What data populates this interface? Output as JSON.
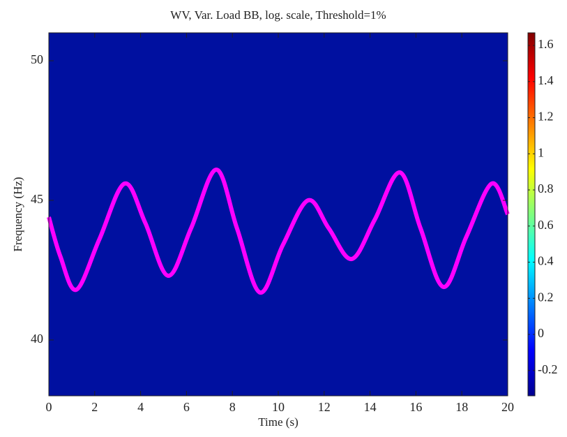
{
  "chart_data": {
    "type": "spectrogram",
    "title": "WV, Var. Load BB, log. scale, Threshold=1%",
    "xlabel": "Time (s)",
    "ylabel": "Frequency (Hz)",
    "xlim": [
      0,
      20
    ],
    "xticks": [
      0,
      2,
      4,
      6,
      8,
      10,
      12,
      14,
      16,
      18,
      20
    ],
    "ylim": [
      38,
      51
    ],
    "yticks": [
      40,
      45,
      50
    ],
    "series": [
      {
        "color": "#ff00ff",
        "x": [
          0,
          0.5,
          1.2,
          2.2,
          3.3,
          4.2,
          5.2,
          6.2,
          7.3,
          8.2,
          9.2,
          10.2,
          11.3,
          12.2,
          13.2,
          14.2,
          15.3,
          16.2,
          17.2,
          18.2,
          19.3,
          20
        ],
        "values": [
          44.4,
          43.0,
          41.8,
          43.6,
          45.6,
          44.2,
          42.3,
          44.0,
          46.1,
          44.0,
          41.7,
          43.4,
          45.0,
          44.0,
          42.9,
          44.3,
          46.0,
          44.0,
          41.9,
          43.7,
          45.6,
          44.5
        ]
      }
    ],
    "colorbar": {
      "clim": [
        -0.34,
        1.67
      ],
      "ticks": [
        -0.2,
        0,
        0.2,
        0.4,
        0.6,
        0.8,
        1,
        1.2,
        1.4,
        1.6
      ]
    }
  }
}
